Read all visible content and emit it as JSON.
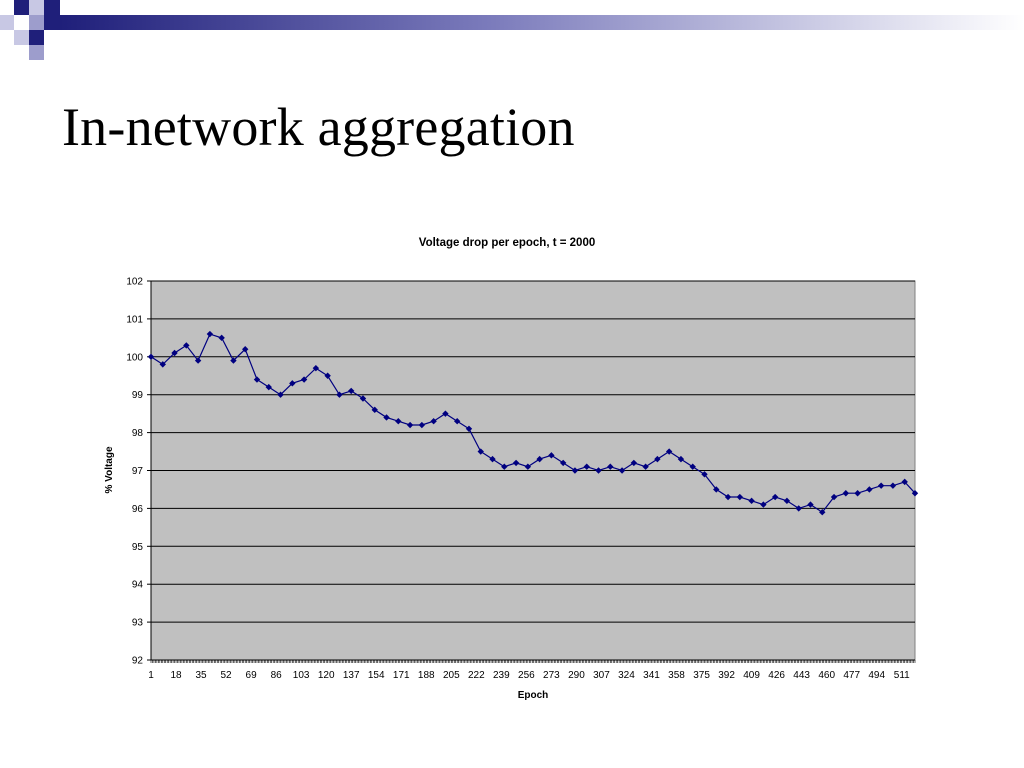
{
  "slide": {
    "title": "In-network aggregation",
    "theme_colors": {
      "navy": "#1f1f7a",
      "lavender": "#9d9dcc",
      "background": "#ffffff"
    }
  },
  "chart_data": {
    "type": "line",
    "title": "Voltage drop per epoch, t = 2000",
    "xlabel": "Epoch",
    "ylabel": "% Voltage",
    "xlim": [
      1,
      520
    ],
    "ylim": [
      92,
      102
    ],
    "yticks": [
      92,
      93,
      94,
      95,
      96,
      97,
      98,
      99,
      100,
      101,
      102
    ],
    "xtick_labels": [
      "1",
      "18",
      "35",
      "52",
      "69",
      "86",
      "103",
      "120",
      "137",
      "154",
      "171",
      "188",
      "205",
      "222",
      "239",
      "256",
      "273",
      "290",
      "307",
      "324",
      "341",
      "358",
      "375",
      "392",
      "409",
      "426",
      "443",
      "460",
      "477",
      "494",
      "511"
    ],
    "grid": "horizontal",
    "legend": "none",
    "plot_background": "#c0c0c0",
    "series": [
      {
        "color": "#000080",
        "marker": "diamond",
        "x": [
          1,
          9,
          17,
          25,
          33,
          41,
          49,
          57,
          65,
          73,
          81,
          89,
          97,
          105,
          113,
          121,
          129,
          137,
          145,
          153,
          161,
          169,
          177,
          185,
          193,
          201,
          209,
          217,
          225,
          233,
          241,
          249,
          257,
          265,
          273,
          281,
          289,
          297,
          305,
          313,
          321,
          329,
          337,
          345,
          353,
          361,
          369,
          377,
          385,
          393,
          401,
          409,
          417,
          425,
          433,
          441,
          449,
          457,
          465,
          473,
          481,
          489,
          497,
          505,
          513,
          520
        ],
        "y": [
          100.0,
          99.8,
          100.1,
          100.3,
          99.9,
          100.6,
          100.5,
          99.9,
          100.2,
          99.4,
          99.2,
          99.0,
          99.3,
          99.4,
          99.7,
          99.5,
          99.0,
          99.1,
          98.9,
          98.6,
          98.4,
          98.3,
          98.2,
          98.2,
          98.3,
          98.5,
          98.3,
          98.1,
          97.5,
          97.3,
          97.1,
          97.2,
          97.1,
          97.3,
          97.4,
          97.2,
          97.0,
          97.1,
          97.0,
          97.1,
          97.0,
          97.2,
          97.1,
          97.3,
          97.5,
          97.3,
          97.1,
          96.9,
          96.5,
          96.3,
          96.3,
          96.2,
          96.1,
          96.3,
          96.2,
          96.0,
          96.1,
          95.9,
          96.3,
          96.4,
          96.4,
          96.5,
          96.6,
          96.6,
          96.7,
          96.4
        ]
      }
    ]
  }
}
